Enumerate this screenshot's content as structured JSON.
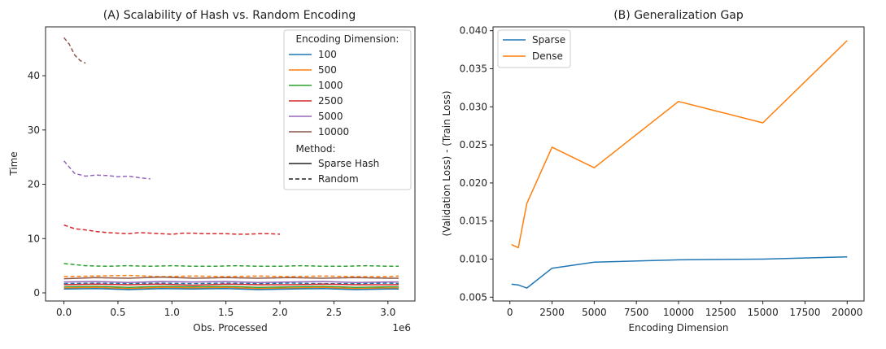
{
  "chart_data": [
    {
      "type": "line",
      "title": "(A) Scalability of Hash vs. Random Encoding",
      "xlabel": "Obs. Processed",
      "ylabel": "Time",
      "x_offset_label": "1e6",
      "xlim": [
        -0.17,
        3.25
      ],
      "ylim": [
        -1.5,
        49
      ],
      "xticks": [
        0,
        0.5,
        1,
        1.5,
        2,
        2.5,
        3
      ],
      "xtick_labels": [
        "0.0",
        "0.5",
        "1.0",
        "1.5",
        "2.0",
        "2.5",
        "3.0"
      ],
      "yticks": [
        0,
        10,
        20,
        30,
        40
      ],
      "ytick_labels": [
        "0",
        "10",
        "20",
        "30",
        "40"
      ],
      "legend": {
        "position": "top-right",
        "dimension_header": "Encoding Dimension:",
        "method_header": "Method:",
        "dimensions": [
          {
            "label": "100",
            "color": "#1f77b4"
          },
          {
            "label": "500",
            "color": "#ff7f0e"
          },
          {
            "label": "1000",
            "color": "#2ca02c"
          },
          {
            "label": "2500",
            "color": "#d62728"
          },
          {
            "label": "5000",
            "color": "#9467bd"
          },
          {
            "label": "10000",
            "color": "#8c564b"
          }
        ],
        "methods": [
          {
            "label": "Sparse Hash",
            "style": "solid"
          },
          {
            "label": "Random",
            "style": "dashed"
          }
        ]
      },
      "series": [
        {
          "name": "Random 10000",
          "color": "#8c564b",
          "dash": true,
          "x": [
            0,
            0.05,
            0.1,
            0.15,
            0.2
          ],
          "y": [
            47.0,
            45.8,
            43.8,
            42.8,
            42.3
          ]
        },
        {
          "name": "Random 5000",
          "color": "#9467bd",
          "dash": true,
          "x": [
            0,
            0.1,
            0.2,
            0.3,
            0.4,
            0.5,
            0.6,
            0.7,
            0.8
          ],
          "y": [
            24.3,
            22.0,
            21.5,
            21.7,
            21.6,
            21.4,
            21.5,
            21.2,
            21.0
          ]
        },
        {
          "name": "Random 2500",
          "color": "#d62728",
          "dash": true,
          "x": [
            0,
            0.1,
            0.2,
            0.3,
            0.4,
            0.5,
            0.6,
            0.7,
            0.8,
            0.9,
            1.0,
            1.1,
            1.2,
            1.3,
            1.4,
            1.5,
            1.6,
            1.7,
            1.8,
            1.9,
            2.0
          ],
          "y": [
            12.5,
            11.8,
            11.6,
            11.3,
            11.1,
            11.0,
            10.9,
            11.1,
            11.0,
            10.9,
            10.8,
            11.0,
            11.0,
            10.9,
            10.9,
            10.9,
            10.8,
            10.8,
            10.9,
            10.9,
            10.8
          ]
        },
        {
          "name": "Random 1000",
          "color": "#2ca02c",
          "dash": true,
          "x": [
            0,
            0.2,
            0.4,
            0.6,
            0.8,
            1.0,
            1.2,
            1.4,
            1.6,
            1.8,
            2.0,
            2.2,
            2.4,
            2.6,
            2.8,
            3.0,
            3.1
          ],
          "y": [
            5.4,
            5.0,
            4.9,
            5.0,
            4.9,
            5.0,
            4.9,
            4.9,
            5.0,
            4.9,
            4.9,
            5.0,
            4.9,
            4.9,
            5.0,
            4.9,
            4.9
          ]
        },
        {
          "name": "Random 500",
          "color": "#ff7f0e",
          "dash": true,
          "x": [
            0,
            0.3,
            0.6,
            0.9,
            1.2,
            1.5,
            1.8,
            2.1,
            2.4,
            2.7,
            3.0,
            3.1
          ],
          "y": [
            3.0,
            3.1,
            3.2,
            3.0,
            3.1,
            3.0,
            3.1,
            3.0,
            3.1,
            3.0,
            3.0,
            3.1
          ]
        },
        {
          "name": "Random 100",
          "color": "#1f77b4",
          "dash": true,
          "x": [
            0,
            0.3,
            0.6,
            0.9,
            1.2,
            1.5,
            1.8,
            2.1,
            2.4,
            2.7,
            3.0,
            3.1
          ],
          "y": [
            1.7,
            1.8,
            1.7,
            1.8,
            1.7,
            1.8,
            1.7,
            1.8,
            1.7,
            1.7,
            1.8,
            1.7
          ]
        },
        {
          "name": "Sparse Hash 10000",
          "color": "#8c564b",
          "dash": false,
          "x": [
            0,
            0.3,
            0.6,
            0.9,
            1.2,
            1.5,
            1.8,
            2.1,
            2.4,
            2.7,
            3.0,
            3.1
          ],
          "y": [
            2.6,
            2.8,
            2.7,
            2.9,
            2.7,
            2.8,
            2.7,
            2.8,
            2.7,
            2.8,
            2.7,
            2.7
          ]
        },
        {
          "name": "Sparse Hash 5000",
          "color": "#9467bd",
          "dash": false,
          "x": [
            0,
            0.3,
            0.6,
            0.9,
            1.2,
            1.5,
            1.8,
            2.1,
            2.4,
            2.7,
            3.0,
            3.1
          ],
          "y": [
            2.0,
            2.1,
            1.9,
            2.1,
            2.0,
            2.1,
            1.9,
            2.0,
            2.1,
            1.9,
            2.0,
            2.0
          ]
        },
        {
          "name": "Sparse Hash 2500",
          "color": "#d62728",
          "dash": false,
          "x": [
            0,
            0.3,
            0.6,
            0.9,
            1.2,
            1.5,
            1.8,
            2.1,
            2.4,
            2.7,
            3.0,
            3.1
          ],
          "y": [
            1.5,
            1.6,
            1.5,
            1.6,
            1.4,
            1.6,
            1.5,
            1.5,
            1.6,
            1.5,
            1.5,
            1.5
          ]
        },
        {
          "name": "Sparse Hash 1000",
          "color": "#2ca02c",
          "dash": false,
          "x": [
            0,
            0.3,
            0.6,
            0.9,
            1.2,
            1.5,
            1.8,
            2.1,
            2.4,
            2.7,
            3.0,
            3.1
          ],
          "y": [
            1.1,
            1.2,
            1.0,
            1.2,
            1.1,
            1.2,
            1.0,
            1.1,
            1.2,
            1.0,
            1.1,
            1.1
          ]
        },
        {
          "name": "Sparse Hash 500",
          "color": "#ff7f0e",
          "dash": false,
          "x": [
            0,
            0.3,
            0.6,
            0.9,
            1.2,
            1.5,
            1.8,
            2.1,
            2.4,
            2.7,
            3.0,
            3.1
          ],
          "y": [
            0.9,
            1.0,
            0.8,
            1.0,
            0.9,
            1.0,
            0.8,
            0.9,
            1.0,
            0.8,
            0.9,
            0.9
          ]
        },
        {
          "name": "Sparse Hash 100",
          "color": "#1f77b4",
          "dash": false,
          "x": [
            0,
            0.3,
            0.6,
            0.9,
            1.2,
            1.5,
            1.8,
            2.1,
            2.4,
            2.7,
            3.0,
            3.1
          ],
          "y": [
            0.7,
            0.8,
            0.6,
            0.8,
            0.7,
            0.8,
            0.6,
            0.7,
            0.8,
            0.6,
            0.7,
            0.7
          ]
        }
      ]
    },
    {
      "type": "line",
      "title": "(B) Generalization Gap",
      "xlabel": "Encoding Dimension",
      "ylabel": "(Validation Loss) - (Train Loss)",
      "xlim": [
        -1000,
        21000
      ],
      "ylim": [
        0.0045,
        0.0405
      ],
      "xticks": [
        0,
        2500,
        5000,
        7500,
        10000,
        12500,
        15000,
        17500,
        20000
      ],
      "xtick_labels": [
        "0",
        "2500",
        "5000",
        "7500",
        "10000",
        "12500",
        "15000",
        "17500",
        "20000"
      ],
      "yticks": [
        0.005,
        0.01,
        0.015,
        0.02,
        0.025,
        0.03,
        0.035,
        0.04
      ],
      "ytick_labels": [
        "0.005",
        "0.010",
        "0.015",
        "0.020",
        "0.025",
        "0.030",
        "0.035",
        "0.040"
      ],
      "legend": {
        "position": "top-left"
      },
      "series": [
        {
          "name": "Sparse",
          "color": "#1f77b4",
          "x": [
            100,
            500,
            1000,
            2500,
            5000,
            10000,
            15000,
            20000
          ],
          "y": [
            0.0067,
            0.0066,
            0.0062,
            0.0088,
            0.0096,
            0.0099,
            0.01,
            0.0103
          ]
        },
        {
          "name": "Dense",
          "color": "#ff7f0e",
          "x": [
            100,
            500,
            1000,
            2500,
            5000,
            10000,
            15000,
            20000
          ],
          "y": [
            0.0119,
            0.0115,
            0.0173,
            0.0247,
            0.022,
            0.0307,
            0.0279,
            0.0387
          ]
        }
      ]
    }
  ]
}
